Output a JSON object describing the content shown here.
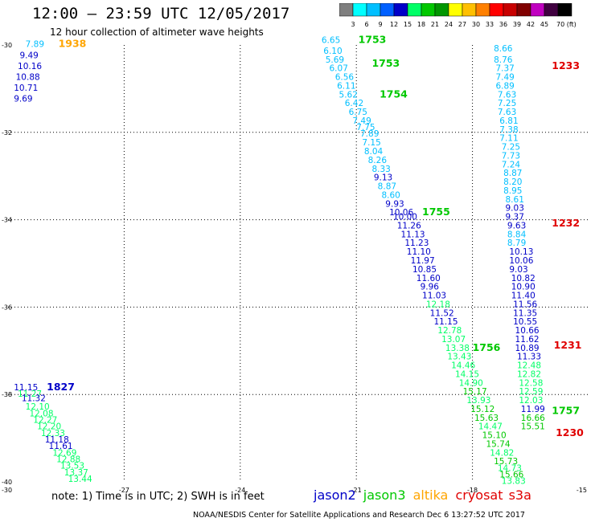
{
  "header": {
    "title": "12:00 – 23:59 UTC 12/05/2017",
    "subtitle": "12 hour collection of altimeter wave heights"
  },
  "color_scale": {
    "labels": [
      "3",
      "6",
      "9",
      "12",
      "15",
      "18",
      "21",
      "24",
      "27",
      "30",
      "33",
      "36",
      "39",
      "42",
      "45",
      "70 (ft)"
    ],
    "colors": [
      "#7f7f7f",
      "#00ffff",
      "#00bfff",
      "#0060ff",
      "#0000c8",
      "#00ff66",
      "#00c800",
      "#009600",
      "#ffff00",
      "#ffc000",
      "#ff8000",
      "#ff0000",
      "#c80000",
      "#800000",
      "#c000c0",
      "#400040",
      "#000000"
    ]
  },
  "axes": {
    "x_ticks": [
      {
        "v": -27,
        "label": "-27"
      },
      {
        "v": -24,
        "label": "-24"
      },
      {
        "v": -21,
        "label": "-21"
      },
      {
        "v": -18,
        "label": "-18"
      },
      {
        "v": -15,
        "label": "-15"
      }
    ],
    "y_ticks": [
      {
        "v": -30,
        "label": "-30"
      },
      {
        "v": -32,
        "label": "-32"
      },
      {
        "v": -34,
        "label": "-34"
      },
      {
        "v": -36,
        "label": "-36"
      },
      {
        "v": -38,
        "label": "-38"
      },
      {
        "v": -40,
        "label": "-40"
      }
    ],
    "corner_labels": [
      {
        "label": "-30",
        "x": -30,
        "y": -40
      },
      {
        "label": "-30",
        "x": -30,
        "y": -30
      }
    ]
  },
  "map_data": {
    "track_a": {
      "labels": [
        {
          "lon": -29.55,
          "lat": -30.05,
          "v": "7.89",
          "c": "#00bfff"
        },
        {
          "lon": -29.7,
          "lat": -30.3,
          "v": "9.49",
          "c": "#0000c8"
        },
        {
          "lon": -29.75,
          "lat": -30.55,
          "v": "10.16",
          "c": "#0000c8"
        },
        {
          "lon": -29.8,
          "lat": -30.8,
          "v": "10.88",
          "c": "#0000c8"
        },
        {
          "lon": -29.85,
          "lat": -31.05,
          "v": "10.71",
          "c": "#0000c8"
        },
        {
          "lon": -29.85,
          "lat": -31.3,
          "v": "9.69",
          "c": "#0000c8"
        }
      ],
      "time": {
        "lon": -28.7,
        "lat": -30.05,
        "v": "1938",
        "c": "#ffa500"
      }
    },
    "track_b": {
      "labels": [
        {
          "lon": -29.85,
          "lat": -37.9,
          "v": "11.15",
          "c": "#0000c8"
        },
        {
          "lon": -29.75,
          "lat": -38.05,
          "v": "11.27",
          "c": "#00ff66"
        },
        {
          "lon": -29.65,
          "lat": -38.15,
          "v": "11.32",
          "c": "#0000c8"
        },
        {
          "lon": -29.55,
          "lat": -38.35,
          "v": "12.10",
          "c": "#00ff66"
        },
        {
          "lon": -29.45,
          "lat": -38.5,
          "v": "12.08",
          "c": "#00ff66"
        },
        {
          "lon": -29.35,
          "lat": -38.65,
          "v": "12.27",
          "c": "#00ff66"
        },
        {
          "lon": -29.25,
          "lat": -38.8,
          "v": "12.20",
          "c": "#00ff66"
        },
        {
          "lon": -29.15,
          "lat": -38.95,
          "v": "12.33",
          "c": "#00ff66"
        },
        {
          "lon": -29.05,
          "lat": -39.1,
          "v": "11.18",
          "c": "#0000c8"
        },
        {
          "lon": -28.95,
          "lat": -39.25,
          "v": "11.61",
          "c": "#0000c8"
        },
        {
          "lon": -28.85,
          "lat": -39.4,
          "v": "12.69",
          "c": "#00ff66"
        },
        {
          "lon": -28.75,
          "lat": -39.55,
          "v": "12.88",
          "c": "#00ff66"
        },
        {
          "lon": -28.65,
          "lat": -39.7,
          "v": "13.53",
          "c": "#00ff66"
        },
        {
          "lon": -28.55,
          "lat": -39.85,
          "v": "13.37",
          "c": "#00ff66"
        },
        {
          "lon": -28.45,
          "lat": -40.0,
          "v": "13.44",
          "c": "#00ff66"
        }
      ],
      "time": {
        "lon": -29.0,
        "lat": -37.9,
        "v": "1827",
        "c": "#0000c8"
      }
    },
    "track_c": {
      "labels": [
        {
          "lon": -21.9,
          "lat": -29.95,
          "v": "6.65",
          "c": "#00bfff"
        },
        {
          "lon": -21.85,
          "lat": -30.2,
          "v": "6.10",
          "c": "#00bfff"
        },
        {
          "lon": -21.8,
          "lat": -30.4,
          "v": "5.69",
          "c": "#00bfff"
        },
        {
          "lon": -21.7,
          "lat": -30.6,
          "v": "6.07",
          "c": "#00bfff"
        },
        {
          "lon": -21.55,
          "lat": -30.8,
          "v": "6.56",
          "c": "#00bfff"
        },
        {
          "lon": -21.5,
          "lat": -31.0,
          "v": "6.11",
          "c": "#00bfff"
        },
        {
          "lon": -21.45,
          "lat": -31.2,
          "v": "5.62",
          "c": "#00bfff"
        },
        {
          "lon": -21.3,
          "lat": -31.4,
          "v": "6.42",
          "c": "#00bfff"
        },
        {
          "lon": -21.2,
          "lat": -31.6,
          "v": "6.75",
          "c": "#00bfff"
        },
        {
          "lon": -21.1,
          "lat": -31.8,
          "v": "7.49",
          "c": "#00bfff"
        },
        {
          "lon": -21.0,
          "lat": -31.95,
          "v": "7.75",
          "c": "#00bfff"
        },
        {
          "lon": -20.9,
          "lat": -32.1,
          "v": "7.89",
          "c": "#00bfff"
        },
        {
          "lon": -20.85,
          "lat": -32.3,
          "v": "7.15",
          "c": "#00bfff"
        },
        {
          "lon": -20.8,
          "lat": -32.5,
          "v": "8.04",
          "c": "#00bfff"
        },
        {
          "lon": -20.7,
          "lat": -32.7,
          "v": "8.26",
          "c": "#00bfff"
        },
        {
          "lon": -20.6,
          "lat": -32.9,
          "v": "8.33",
          "c": "#00bfff"
        },
        {
          "lon": -20.55,
          "lat": -33.1,
          "v": "9.13",
          "c": "#0000c8"
        },
        {
          "lon": -20.45,
          "lat": -33.3,
          "v": "8.87",
          "c": "#00bfff"
        },
        {
          "lon": -20.35,
          "lat": -33.5,
          "v": "8.60",
          "c": "#00bfff"
        },
        {
          "lon": -20.25,
          "lat": -33.7,
          "v": "9.93",
          "c": "#0000c8"
        },
        {
          "lon": -20.15,
          "lat": -33.9,
          "v": "10.06",
          "c": "#0000c8"
        },
        {
          "lon": -20.05,
          "lat": -34.0,
          "v": "10.00",
          "c": "#0000c8"
        },
        {
          "lon": -19.95,
          "lat": -34.2,
          "v": "11.26",
          "c": "#0000c8"
        },
        {
          "lon": -19.85,
          "lat": -34.4,
          "v": "11.13",
          "c": "#0000c8"
        },
        {
          "lon": -19.75,
          "lat": -34.6,
          "v": "11.23",
          "c": "#0000c8"
        },
        {
          "lon": -19.7,
          "lat": -34.8,
          "v": "11.10",
          "c": "#0000c8"
        },
        {
          "lon": -19.6,
          "lat": -35.0,
          "v": "11.97",
          "c": "#0000c8"
        },
        {
          "lon": -19.55,
          "lat": -35.2,
          "v": "10.85",
          "c": "#0000c8"
        },
        {
          "lon": -19.45,
          "lat": -35.4,
          "v": "11.60",
          "c": "#0000c8"
        },
        {
          "lon": -19.35,
          "lat": -35.6,
          "v": "9.96",
          "c": "#0000c8"
        },
        {
          "lon": -19.3,
          "lat": -35.8,
          "v": "11.03",
          "c": "#0000c8"
        },
        {
          "lon": -19.2,
          "lat": -36.0,
          "v": "12.18",
          "c": "#00ff66"
        },
        {
          "lon": -19.1,
          "lat": -36.2,
          "v": "11.52",
          "c": "#0000c8"
        },
        {
          "lon": -19.0,
          "lat": -36.4,
          "v": "11.15",
          "c": "#0000c8"
        },
        {
          "lon": -18.9,
          "lat": -36.6,
          "v": "12.78",
          "c": "#00ff66"
        },
        {
          "lon": -18.8,
          "lat": -36.8,
          "v": "13.07",
          "c": "#00ff66"
        },
        {
          "lon": -18.7,
          "lat": -37.0,
          "v": "13.38",
          "c": "#00ff66"
        },
        {
          "lon": -18.65,
          "lat": -37.2,
          "v": "13.43",
          "c": "#00ff66"
        },
        {
          "lon": -18.55,
          "lat": -37.4,
          "v": "14.46",
          "c": "#00ff66"
        },
        {
          "lon": -18.45,
          "lat": -37.6,
          "v": "14.15",
          "c": "#00ff66"
        },
        {
          "lon": -18.35,
          "lat": -37.8,
          "v": "14.90",
          "c": "#00ff66"
        },
        {
          "lon": -18.25,
          "lat": -38.0,
          "v": "15.17",
          "c": "#00c800"
        },
        {
          "lon": -18.15,
          "lat": -38.2,
          "v": "13.93",
          "c": "#00ff66"
        },
        {
          "lon": -18.05,
          "lat": -38.4,
          "v": "15.12",
          "c": "#00c800"
        },
        {
          "lon": -17.95,
          "lat": -38.6,
          "v": "15.63",
          "c": "#00c800"
        },
        {
          "lon": -17.85,
          "lat": -38.8,
          "v": "14.47",
          "c": "#00ff66"
        },
        {
          "lon": -17.75,
          "lat": -39.0,
          "v": "15.10",
          "c": "#00c800"
        },
        {
          "lon": -17.65,
          "lat": -39.2,
          "v": "15.74",
          "c": "#00c800"
        },
        {
          "lon": -17.55,
          "lat": -39.4,
          "v": "14.82",
          "c": "#00ff66"
        },
        {
          "lon": -17.45,
          "lat": -39.6,
          "v": "15.73",
          "c": "#00c800"
        },
        {
          "lon": -17.35,
          "lat": -39.75,
          "v": "14.73",
          "c": "#00ff66"
        },
        {
          "lon": -17.3,
          "lat": -39.9,
          "v": "15.66",
          "c": "#00c800"
        },
        {
          "lon": -17.25,
          "lat": -40.05,
          "v": "13.83",
          "c": "#00ff66"
        }
      ],
      "times": [
        {
          "lon": -20.95,
          "lat": -29.95,
          "v": "1753",
          "c": "#00c800"
        },
        {
          "lon": -20.6,
          "lat": -30.5,
          "v": "1753",
          "c": "#00c800"
        },
        {
          "lon": -20.4,
          "lat": -31.2,
          "v": "1754",
          "c": "#00c800"
        },
        {
          "lon": -19.3,
          "lat": -33.9,
          "v": "1755",
          "c": "#00c800"
        },
        {
          "lon": -18.0,
          "lat": -37.0,
          "v": "1756",
          "c": "#00c800"
        }
      ]
    },
    "track_d": {
      "labels": [
        {
          "lon": -17.45,
          "lat": -30.15,
          "v": "8.66",
          "c": "#00bfff"
        },
        {
          "lon": -17.45,
          "lat": -30.4,
          "v": "8.76",
          "c": "#00bfff"
        },
        {
          "lon": -17.4,
          "lat": -30.6,
          "v": "7.37",
          "c": "#00bfff"
        },
        {
          "lon": -17.4,
          "lat": -30.8,
          "v": "7.49",
          "c": "#00bfff"
        },
        {
          "lon": -17.4,
          "lat": -31.0,
          "v": "6.89",
          "c": "#00bfff"
        },
        {
          "lon": -17.35,
          "lat": -31.2,
          "v": "7.63",
          "c": "#00bfff"
        },
        {
          "lon": -17.35,
          "lat": -31.4,
          "v": "7.25",
          "c": "#00bfff"
        },
        {
          "lon": -17.35,
          "lat": -31.6,
          "v": "7.63",
          "c": "#00bfff"
        },
        {
          "lon": -17.3,
          "lat": -31.8,
          "v": "6.81",
          "c": "#00bfff"
        },
        {
          "lon": -17.3,
          "lat": -32.0,
          "v": "7.38",
          "c": "#00bfff"
        },
        {
          "lon": -17.3,
          "lat": -32.2,
          "v": "7.11",
          "c": "#00bfff"
        },
        {
          "lon": -17.25,
          "lat": -32.4,
          "v": "7.25",
          "c": "#00bfff"
        },
        {
          "lon": -17.25,
          "lat": -32.6,
          "v": "7.73",
          "c": "#00bfff"
        },
        {
          "lon": -17.25,
          "lat": -32.8,
          "v": "7.24",
          "c": "#00bfff"
        },
        {
          "lon": -17.2,
          "lat": -33.0,
          "v": "8.87",
          "c": "#00bfff"
        },
        {
          "lon": -17.2,
          "lat": -33.2,
          "v": "8.20",
          "c": "#00bfff"
        },
        {
          "lon": -17.2,
          "lat": -33.4,
          "v": "8.95",
          "c": "#00bfff"
        },
        {
          "lon": -17.15,
          "lat": -33.6,
          "v": "8.61",
          "c": "#00bfff"
        },
        {
          "lon": -17.15,
          "lat": -33.8,
          "v": "9.03",
          "c": "#0000c8"
        },
        {
          "lon": -17.15,
          "lat": -34.0,
          "v": "9.37",
          "c": "#0000c8"
        },
        {
          "lon": -17.1,
          "lat": -34.2,
          "v": "9.63",
          "c": "#0000c8"
        },
        {
          "lon": -17.1,
          "lat": -34.4,
          "v": "8.84",
          "c": "#00bfff"
        },
        {
          "lon": -17.1,
          "lat": -34.6,
          "v": "8.79",
          "c": "#00bfff"
        },
        {
          "lon": -17.05,
          "lat": -34.8,
          "v": "10.13",
          "c": "#0000c8"
        },
        {
          "lon": -17.05,
          "lat": -35.0,
          "v": "10.06",
          "c": "#0000c8"
        },
        {
          "lon": -17.05,
          "lat": -35.2,
          "v": "9.03",
          "c": "#0000c8"
        },
        {
          "lon": -17.0,
          "lat": -35.4,
          "v": "10.82",
          "c": "#0000c8"
        },
        {
          "lon": -17.0,
          "lat": -35.6,
          "v": "10.90",
          "c": "#0000c8"
        },
        {
          "lon": -17.0,
          "lat": -35.8,
          "v": "11.40",
          "c": "#0000c8"
        },
        {
          "lon": -16.95,
          "lat": -36.0,
          "v": "11.56",
          "c": "#0000c8"
        },
        {
          "lon": -16.95,
          "lat": -36.2,
          "v": "11.35",
          "c": "#0000c8"
        },
        {
          "lon": -16.95,
          "lat": -36.4,
          "v": "10.55",
          "c": "#0000c8"
        },
        {
          "lon": -16.9,
          "lat": -36.6,
          "v": "10.66",
          "c": "#0000c8"
        },
        {
          "lon": -16.9,
          "lat": -36.8,
          "v": "11.62",
          "c": "#0000c8"
        },
        {
          "lon": -16.9,
          "lat": -37.0,
          "v": "10.89",
          "c": "#0000c8"
        },
        {
          "lon": -16.85,
          "lat": -37.2,
          "v": "11.33",
          "c": "#0000c8"
        },
        {
          "lon": -16.85,
          "lat": -37.4,
          "v": "12.48",
          "c": "#00ff66"
        },
        {
          "lon": -16.85,
          "lat": -37.6,
          "v": "12.82",
          "c": "#00ff66"
        },
        {
          "lon": -16.8,
          "lat": -37.8,
          "v": "12.58",
          "c": "#00ff66"
        },
        {
          "lon": -16.8,
          "lat": -38.0,
          "v": "12.59",
          "c": "#00ff66"
        },
        {
          "lon": -16.8,
          "lat": -38.2,
          "v": "12.03",
          "c": "#00ff66"
        },
        {
          "lon": -16.75,
          "lat": -38.4,
          "v": "11.99",
          "c": "#0000c8"
        },
        {
          "lon": -16.75,
          "lat": -38.6,
          "v": "16.66",
          "c": "#00c800"
        },
        {
          "lon": -16.75,
          "lat": -38.8,
          "v": "15.51",
          "c": "#00c800"
        }
      ],
      "times": [
        {
          "lon": -15.95,
          "lat": -30.55,
          "v": "1233",
          "c": "#e00000"
        },
        {
          "lon": -15.95,
          "lat": -34.15,
          "v": "1232",
          "c": "#e00000"
        },
        {
          "lon": -15.9,
          "lat": -36.95,
          "v": "1231",
          "c": "#e00000"
        },
        {
          "lon": -15.95,
          "lat": -38.45,
          "v": "1757",
          "c": "#00c800"
        },
        {
          "lon": -15.85,
          "lat": -38.95,
          "v": "1230",
          "c": "#e00000"
        }
      ]
    }
  },
  "footer": {
    "note": "note:  1) Time is in UTC;  2) SWH is in feet",
    "legend": [
      {
        "name": "jason2",
        "color": "#0000c8"
      },
      {
        "name": "jason3",
        "color": "#00c800"
      },
      {
        "name": "altika",
        "color": "#ffa500"
      },
      {
        "name": "cryosat",
        "color": "#e00000"
      },
      {
        "name": "s3a",
        "color": "#e00000"
      }
    ],
    "credit": "NOAA/NESDIS Center for Satellite Applications and Research     Dec  6 13:27:52 UTC 2017"
  }
}
